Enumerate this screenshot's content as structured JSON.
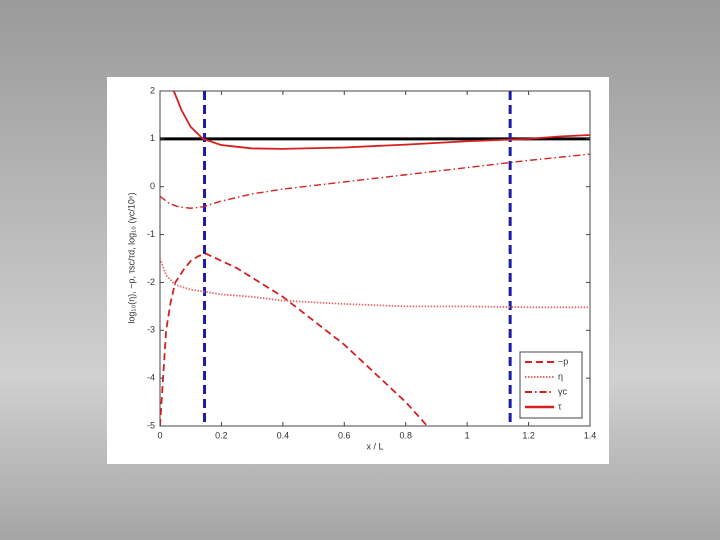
{
  "chart_data": {
    "type": "line",
    "xlabel": "x / L",
    "ylabel": "log₁₀(η), −p, τsc/τd,  log₁₀ (γc/10⁶)",
    "xlim": [
      0,
      1.4
    ],
    "ylim": [
      -5,
      2
    ],
    "xticks": [
      0,
      0.2,
      0.4,
      0.6,
      0.8,
      1,
      1.2,
      1.4
    ],
    "yticks": [
      -5,
      -4,
      -3,
      -2,
      -1,
      0,
      1,
      2
    ],
    "legend": "lower right",
    "reference_lines": {
      "y": [
        1
      ],
      "y_color": "#000000",
      "x": [
        0.145,
        1.14
      ],
      "x_color": "#1c1ca8"
    },
    "series": [
      {
        "name": "−p",
        "color": "#d42020",
        "dash": "dashed",
        "x": [
          0,
          0.01,
          0.02,
          0.035,
          0.05,
          0.075,
          0.1,
          0.125,
          0.15,
          0.2,
          0.25,
          0.3,
          0.35,
          0.4,
          0.5,
          0.6,
          0.7,
          0.8,
          0.87
        ],
        "values": [
          -5,
          -4,
          -3,
          -2.4,
          -2,
          -1.75,
          -1.55,
          -1.45,
          -1.4,
          -1.55,
          -1.7,
          -1.9,
          -2.1,
          -2.3,
          -2.8,
          -3.3,
          -3.9,
          -4.5,
          -5
        ]
      },
      {
        "name": "η",
        "color": "#e06a6a",
        "dash": "dotted",
        "x": [
          0,
          0.02,
          0.05,
          0.1,
          0.2,
          0.3,
          0.4,
          0.6,
          0.8,
          1,
          1.2,
          1.4
        ],
        "values": [
          -1.5,
          -1.85,
          -2.05,
          -2.15,
          -2.25,
          -2.3,
          -2.38,
          -2.45,
          -2.5,
          -2.5,
          -2.52,
          -2.52
        ]
      },
      {
        "name": "γc",
        "color": "#d42020",
        "dash": "dashdot",
        "x": [
          0,
          0.03,
          0.06,
          0.1,
          0.14,
          0.2,
          0.3,
          0.4,
          0.6,
          0.8,
          1,
          1.2,
          1.4
        ],
        "values": [
          -0.2,
          -0.35,
          -0.42,
          -0.45,
          -0.42,
          -0.3,
          -0.15,
          -0.05,
          0.1,
          0.25,
          0.4,
          0.55,
          0.68
        ]
      },
      {
        "name": "τ",
        "color": "#d42020",
        "dash": "solid",
        "x": [
          0.045,
          0.07,
          0.1,
          0.14,
          0.2,
          0.3,
          0.4,
          0.6,
          0.8,
          1,
          1.2,
          1.3,
          1.4
        ],
        "values": [
          2,
          1.6,
          1.25,
          1.0,
          0.87,
          0.8,
          0.79,
          0.82,
          0.88,
          0.95,
          1.0,
          1.05,
          1.08
        ]
      }
    ]
  }
}
